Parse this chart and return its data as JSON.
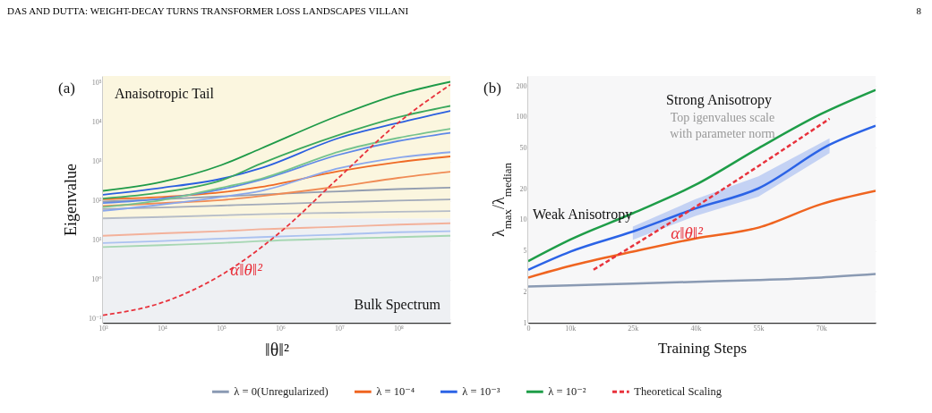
{
  "chart_data": [
    {
      "type": "line",
      "title": "(a)",
      "xlabel": "‖θ‖²",
      "ylabel": "Eigenvalue",
      "log": "xy",
      "grid": true,
      "x": [
        1000,
        10000,
        100000,
        470000,
        10000000,
        100000000,
        760000000
      ],
      "xlim": [
        1000,
        760000000
      ],
      "xticks": [
        {
          "value": 1000,
          "label": "10³"
        },
        {
          "value": 10000,
          "label": "10⁴"
        },
        {
          "value": 100000,
          "label": "10⁵"
        },
        {
          "value": 1000000,
          "label": "10⁶"
        },
        {
          "value": 10000000,
          "label": "10⁷"
        },
        {
          "value": 100000000,
          "label": "10⁸"
        }
      ],
      "ylim": [
        0.08,
        150000
      ],
      "yticks": [
        {
          "value": 0.1,
          "label": "10⁻¹"
        },
        {
          "value": 1,
          "label": "10⁰"
        },
        {
          "value": 10,
          "label": "10¹"
        },
        {
          "value": 100,
          "label": "10²"
        },
        {
          "value": 1000,
          "label": "10³"
        },
        {
          "value": 10000,
          "label": "10⁴"
        },
        {
          "value": 100000,
          "label": "10⁵"
        }
      ],
      "bands": [
        {
          "axis": "y",
          "from": 0.08,
          "to": 36,
          "label": "Bulk Spectrum",
          "color": "#eef0f3"
        },
        {
          "axis": "y",
          "from": 36,
          "to": 150000,
          "label": "Anaisotropic Tail",
          "color": "#fbf6df"
        }
      ],
      "annotations": [
        "DAS AND DUTTA: WEIGHT-DECAY TURNS TRANSFORMER LOSS LANDSCAPES VILLANI",
        "8",
        "α‖θ‖²"
      ],
      "series": [
        {
          "color": "#a6d7b3",
          "values": [
            6.7,
            7.5,
            8.5,
            9.5,
            11,
            12,
            13
          ]
        },
        {
          "color": "#abc2f0",
          "values": [
            8.5,
            9.5,
            11,
            12,
            14,
            16,
            17
          ]
        },
        {
          "color": "#f3b19a",
          "values": [
            13,
            15,
            17,
            19,
            22,
            25,
            27
          ]
        },
        {
          "color": "#b5bcc8",
          "values": [
            36,
            39,
            43,
            46,
            50,
            53,
            55
          ]
        },
        {
          "color": "#a3abba",
          "values": [
            62,
            68,
            76,
            82,
            93,
            102,
            109
          ]
        },
        {
          "color": "#939db0",
          "values": [
            96,
            110,
            130,
            145,
            175,
            200,
            218
          ]
        },
        {
          "color": "#f08b55",
          "values": [
            74,
            88,
            105,
            133,
            234,
            385,
            550
          ]
        },
        {
          "color": "#ef6a25",
          "values": [
            111,
            126,
            165,
            226,
            570,
            965,
            1350
          ]
        },
        {
          "color": "#8aa7ec",
          "values": [
            56,
            81,
            126,
            180,
            680,
            1260,
            1730
          ]
        },
        {
          "color": "#5e88e8",
          "values": [
            88,
            115,
            196,
            345,
            1500,
            3330,
            5400
          ]
        },
        {
          "color": "#76c38e",
          "values": [
            70,
            105,
            215,
            365,
            1800,
            4000,
            6800
          ]
        },
        {
          "color": "#2a5fe0",
          "values": [
            143,
            215,
            365,
            680,
            4000,
            9650,
            19500
          ]
        },
        {
          "color": "#3aa85c",
          "values": [
            115,
            165,
            330,
            880,
            4750,
            13400,
            26000
          ]
        },
        {
          "color": "#1e9a48",
          "values": [
            180,
            305,
            810,
            2140,
            15000,
            51000,
            107000
          ]
        },
        {
          "color": "#e8323c",
          "line_style": "dashed",
          "x": [
            1000,
            10000,
            100000,
            1000000,
            10000000,
            100000000,
            760000000
          ],
          "values": [
            0.124,
            0.26,
            1.3,
            16,
            400,
            9700,
            90000
          ]
        }
      ]
    },
    {
      "type": "line",
      "title": "(b)",
      "xlabel": "Training Steps",
      "ylabel": "λ$_{max}$/λ$_{median}$",
      "log": "y",
      "grid": true,
      "legend": "bottom",
      "x": [
        0,
        10000,
        25000,
        40000,
        55000,
        70000,
        83000
      ],
      "xlim": [
        0,
        83000
      ],
      "xticks": [
        0,
        {
          "value": 10000,
          "label": "10k"
        },
        {
          "value": 25000,
          "label": "25k"
        },
        {
          "value": 40000,
          "label": "40k"
        },
        {
          "value": 55000,
          "label": "55k"
        },
        {
          "value": 70000,
          "label": "70k"
        }
      ],
      "ylim": [
        1,
        250
      ],
      "yticks": [
        1,
        2,
        5,
        10,
        20,
        50,
        100,
        200
      ],
      "annotations": [
        "Strong Anisotropy",
        "Top igenvalues scale with parameter norm",
        "Weak Anisotropy",
        "α‖θ‖²"
      ],
      "series": [
        {
          "name": "λ = 0(Unregularized)",
          "color": "#8a9ab3",
          "values": [
            2.25,
            2.3,
            2.4,
            2.5,
            2.6,
            2.75,
            2.97
          ]
        },
        {
          "name": "λ = 10⁻⁴",
          "color": "#ef6420",
          "values": [
            2.75,
            3.56,
            4.9,
            6.6,
            8.4,
            14.2,
            19.1
          ]
        },
        {
          "name": "λ = 10⁻³",
          "color": "#2b63e6",
          "x": [
            0,
            10000,
            25000,
            40000,
            55000,
            72000,
            83000
          ],
          "values": [
            3.27,
            4.9,
            7.7,
            12.9,
            20.2,
            53.6,
            82
          ],
          "lower": [
            null,
            null,
            6.4,
            10.9,
            16.8,
            44.6,
            null
          ],
          "upper": [
            null,
            null,
            8.6,
            15.9,
            26.5,
            61.9,
            null
          ]
        },
        {
          "name": "λ = 10⁻²",
          "color": "#1e9d48",
          "values": [
            3.96,
            6.4,
            11.6,
            21.9,
            49.6,
            107,
            183
          ]
        },
        {
          "name": "Theoretical Scaling",
          "color": "#e8323c",
          "line_style": "dashed",
          "x": [
            15600,
            40000,
            72000
          ],
          "values": [
            3.27,
            13.4,
            96
          ]
        }
      ]
    }
  ]
}
